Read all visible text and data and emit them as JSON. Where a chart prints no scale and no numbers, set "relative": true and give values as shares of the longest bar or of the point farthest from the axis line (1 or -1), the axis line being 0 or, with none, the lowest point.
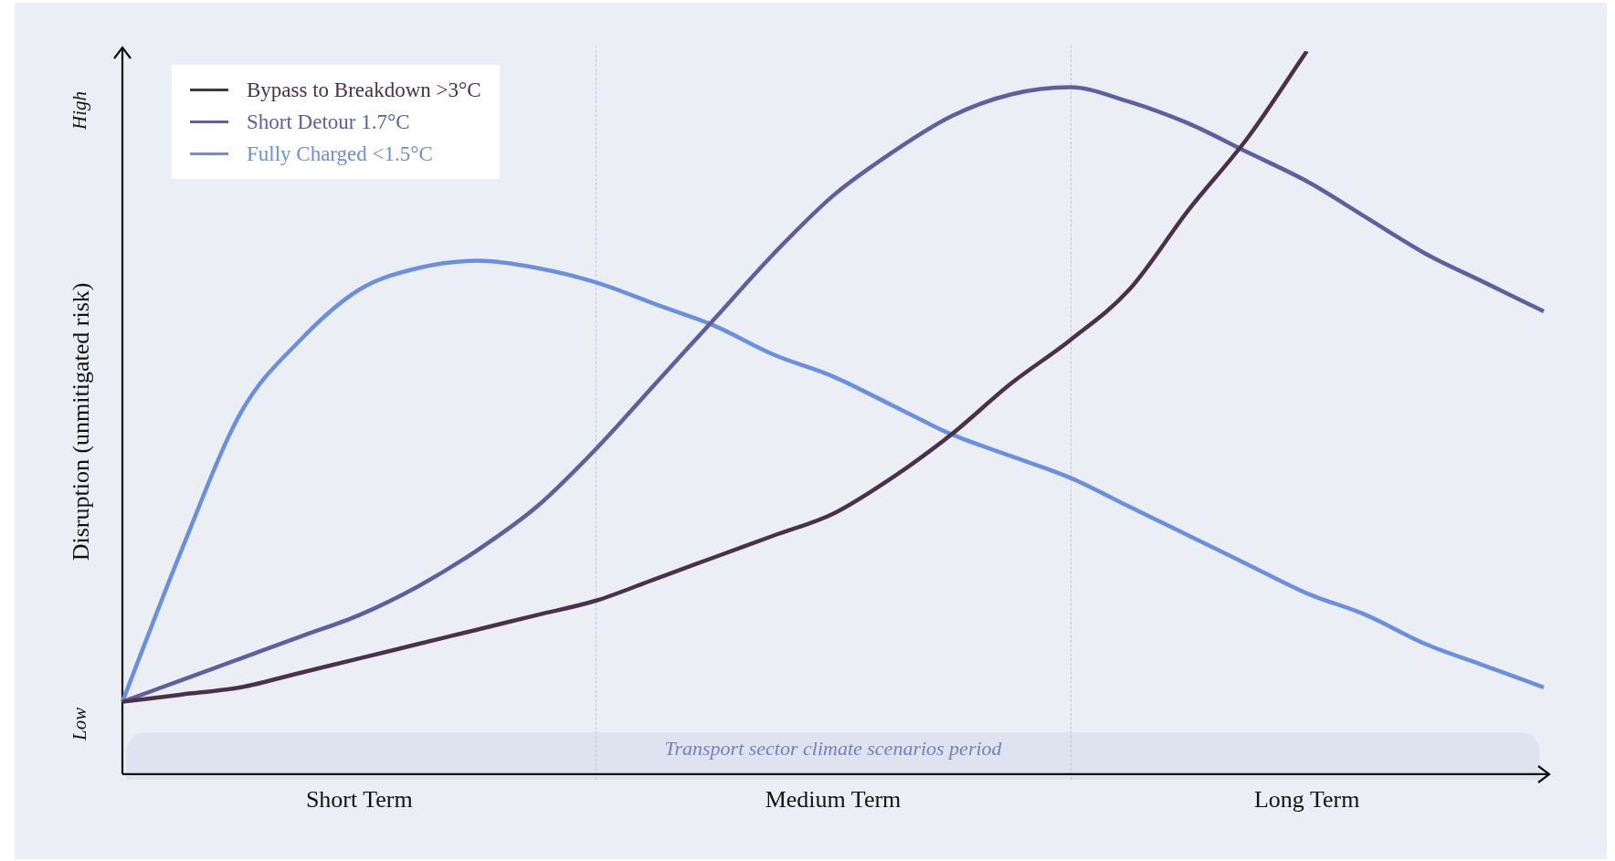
{
  "chart_data": {
    "type": "line",
    "relative": true,
    "ylabel": "Disruption (unmitigated risk)",
    "legend": "top left",
    "categories": [
      null,
      null,
      null,
      null,
      "Short Term",
      null,
      null,
      null,
      null,
      null,
      null,
      null,
      "Medium Term",
      null,
      null,
      null,
      null,
      null,
      null,
      null,
      "Long Term",
      null,
      null,
      null,
      null
    ],
    "annotations": [
      "High",
      "Low",
      "Transport sector climate scenarios period"
    ],
    "series": [
      {
        "name": "Bypass to Breakdown >3°C",
        "color": "#4a3049",
        "values": [
          0.1,
          0.11,
          0.12,
          0.14,
          0.16,
          0.18,
          0.2,
          0.22,
          0.24,
          0.27,
          0.3,
          0.33,
          0.36,
          0.41,
          0.47,
          0.54,
          0.6,
          0.67,
          0.78,
          0.88,
          1.0,
          null,
          null,
          null,
          null
        ]
      },
      {
        "name": "Short Detour 1.7°C",
        "color": "#5f5e9e",
        "values": [
          0.1,
          0.13,
          0.16,
          0.19,
          0.22,
          0.26,
          0.31,
          0.37,
          0.45,
          0.54,
          0.63,
          0.72,
          0.8,
          0.86,
          0.91,
          0.94,
          0.95,
          0.93,
          0.9,
          0.86,
          0.82,
          0.77,
          0.72,
          0.68,
          0.64
        ]
      },
      {
        "name": "Fully Charged <1.5°C",
        "color": "#6b8fdb",
        "values": [
          0.1,
          0.31,
          0.5,
          0.6,
          0.67,
          0.7,
          0.71,
          0.7,
          0.68,
          0.65,
          0.62,
          0.58,
          0.55,
          0.51,
          0.47,
          0.44,
          0.41,
          0.37,
          0.33,
          0.29,
          0.25,
          0.22,
          0.18,
          0.15,
          0.12
        ]
      }
    ]
  }
}
